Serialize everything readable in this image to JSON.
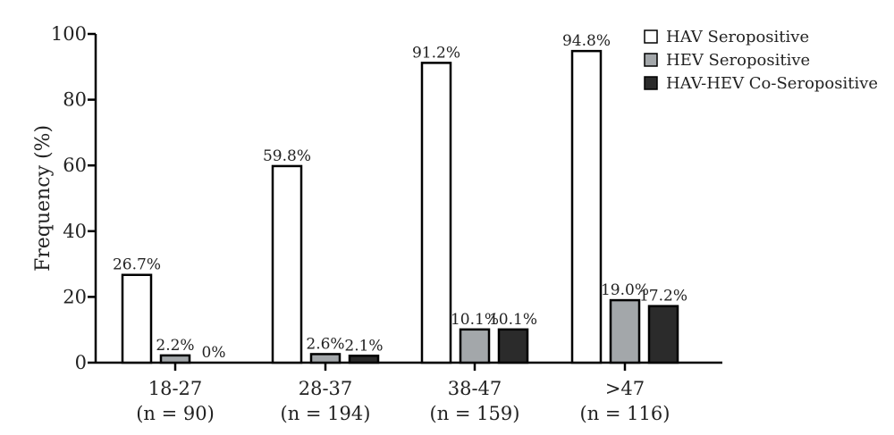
{
  "chart_data": {
    "type": "bar",
    "title": "",
    "xlabel": "",
    "ylabel": "Frequency (%)",
    "ylim": [
      0,
      100
    ],
    "yticks": [
      0,
      20,
      40,
      60,
      80,
      100
    ],
    "categories": [
      {
        "label": "18-27",
        "n_label": "(n = 90)"
      },
      {
        "label": "28-37",
        "n_label": "(n = 194)"
      },
      {
        "label": "38-47",
        "n_label": "(n = 159)"
      },
      {
        "label": ">47",
        "n_label": "(n = 116)"
      }
    ],
    "series": [
      {
        "name": "HAV Seropositive",
        "color": "#ffffff",
        "values": [
          26.7,
          59.8,
          91.2,
          94.8
        ],
        "labels": [
          "26.7%",
          "59.8%",
          "91.2%",
          "94.8%"
        ]
      },
      {
        "name": "HEV Seropositive",
        "color": "#a3a7aa",
        "values": [
          2.2,
          2.6,
          10.1,
          19.0
        ],
        "labels": [
          "2.2%",
          "2.6%",
          "10.1%",
          "19.0%"
        ]
      },
      {
        "name": "HAV-HEV Co-Seropositive",
        "color": "#2b2b2b",
        "values": [
          0,
          2.1,
          10.1,
          17.2
        ],
        "labels": [
          "0%",
          "2.1%",
          "10.1%",
          "17.2%"
        ]
      }
    ],
    "legend_position": "top-right",
    "grid": false
  }
}
